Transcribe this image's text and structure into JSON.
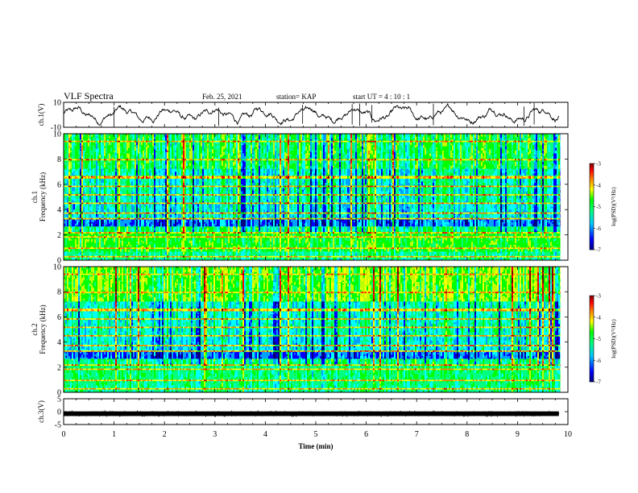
{
  "header": {
    "title": "VLF Spectra",
    "date": "Feb. 25, 2021",
    "station": "station= KAP",
    "start": "start UT =  4 : 10 : 1"
  },
  "colors": {
    "colormap": [
      "#000080",
      "#0000ff",
      "#00a0ff",
      "#00ffff",
      "#00ff80",
      "#00ff00",
      "#c0ff00",
      "#ffff00",
      "#ff8000",
      "#ff0000",
      "#800000"
    ],
    "trace": "#000000"
  },
  "chart_data": [
    {
      "type": "line",
      "name": "ch1-waveform",
      "ylabel": "ch.1(V)",
      "ylim": [
        -10,
        10
      ],
      "yticks": [
        "10",
        "-10"
      ],
      "xlim": [
        0,
        10
      ]
    },
    {
      "type": "heatmap",
      "name": "ch1-spectrogram",
      "ylabel": "ch.1\nFrequency (kHz)",
      "ylim": [
        0,
        10
      ],
      "yticks": [
        "0",
        "2",
        "4",
        "6",
        "8",
        "10"
      ],
      "xlim": [
        0,
        10
      ],
      "colorbar": {
        "label": "log(PSD)(V²/Hz)",
        "range": [
          -7,
          -3
        ],
        "ticks": [
          "-3",
          "-4",
          "-5",
          "-6",
          "-7"
        ]
      }
    },
    {
      "type": "heatmap",
      "name": "ch2-spectrogram",
      "ylabel": "ch.2\nFrequency (kHz)",
      "ylim": [
        0,
        10
      ],
      "yticks": [
        "0",
        "2",
        "4",
        "6",
        "8",
        "10"
      ],
      "xlim": [
        0,
        10
      ],
      "colorbar": {
        "label": "log(PSD)(V²/Hz)",
        "range": [
          -7,
          -3
        ],
        "ticks": [
          "-3",
          "-4",
          "-5",
          "-6",
          "-7"
        ]
      }
    },
    {
      "type": "line",
      "name": "ch3-waveform",
      "ylabel": "ch.3(V)",
      "ylim": [
        -5,
        5
      ],
      "yticks": [
        "5",
        "0",
        "-5"
      ],
      "xlim": [
        0,
        10
      ],
      "xlabel": "Time (min)",
      "xticks": [
        "0",
        "1",
        "2",
        "3",
        "4",
        "5",
        "6",
        "7",
        "8",
        "9",
        "10"
      ]
    }
  ]
}
